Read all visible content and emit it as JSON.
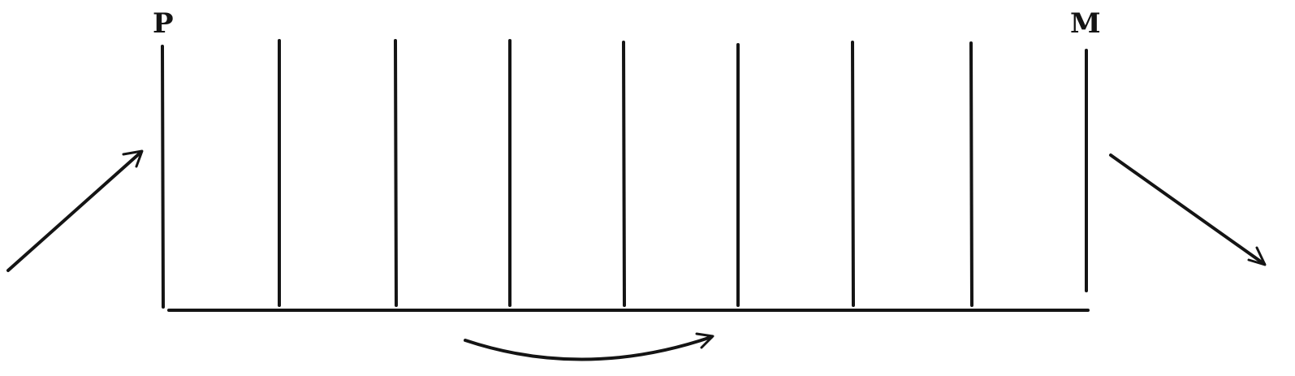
{
  "labels": {
    "left_end": "P",
    "right_end": "M"
  },
  "colors": {
    "ink": "#141414",
    "paper": "#ffffff"
  }
}
